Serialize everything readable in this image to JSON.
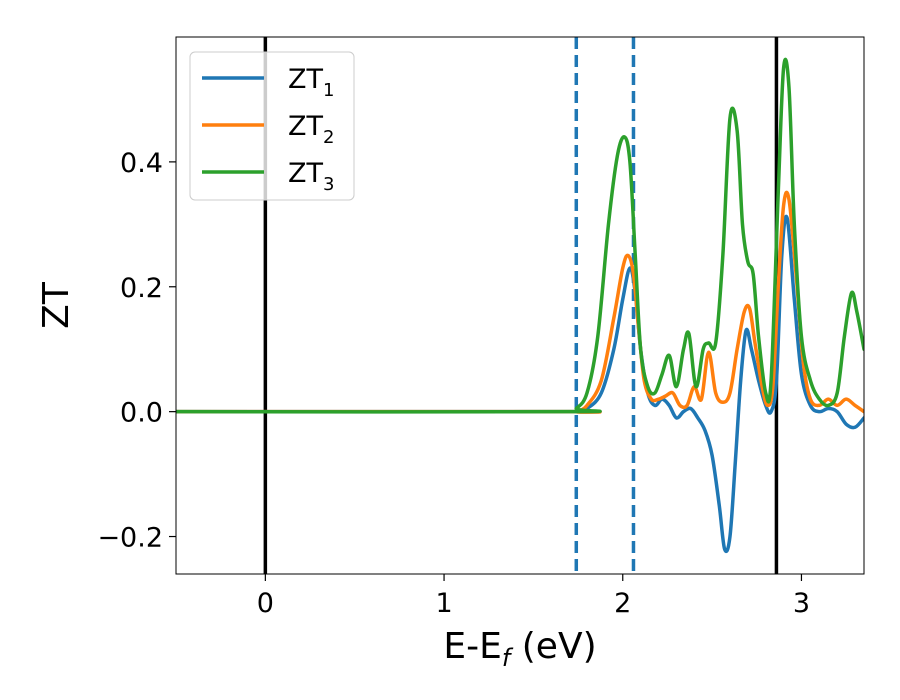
{
  "chart_data": {
    "type": "line",
    "xlabel_main": "E-E",
    "xlabel_sub": "f",
    "xlabel_unit": " (eV)",
    "ylabel": "ZT",
    "xlim": [
      -0.5,
      3.35
    ],
    "ylim": [
      -0.26,
      0.6
    ],
    "xticks": [
      0,
      1,
      2,
      3
    ],
    "xtick_labels": [
      "0",
      "1",
      "2",
      "3"
    ],
    "yticks": [
      -0.2,
      0.0,
      0.2,
      0.4
    ],
    "ytick_labels": [
      "−0.2",
      "0.0",
      "0.2",
      "0.4"
    ],
    "grid": false,
    "legend_position": "top-left",
    "vlines": [
      {
        "x": 0.0,
        "style": "solid",
        "color": "#000000"
      },
      {
        "x": 2.86,
        "style": "solid",
        "color": "#000000"
      },
      {
        "x": 1.74,
        "style": "dashed",
        "color": "#1f77b4"
      },
      {
        "x": 2.06,
        "style": "dashed",
        "color": "#1f77b4"
      }
    ],
    "series": [
      {
        "name": "ZT",
        "sub": "1",
        "color": "#1f77b4",
        "x": [
          -0.5,
          1.7,
          1.74,
          1.8,
          1.88,
          1.95,
          2.0,
          2.04,
          2.07,
          2.1,
          2.14,
          2.18,
          2.22,
          2.26,
          2.3,
          2.34,
          2.38,
          2.42,
          2.46,
          2.5,
          2.54,
          2.57,
          2.6,
          2.63,
          2.66,
          2.69,
          2.72,
          2.76,
          2.8,
          2.83,
          2.86,
          2.89,
          2.92,
          2.96,
          3.0,
          3.05,
          3.1,
          3.15,
          3.2,
          3.25,
          3.3,
          3.35
        ],
        "y": [
          0.0,
          0.0,
          0.0,
          0.005,
          0.03,
          0.1,
          0.18,
          0.23,
          0.19,
          0.1,
          0.03,
          0.01,
          0.02,
          0.01,
          -0.01,
          0.0,
          0.005,
          -0.01,
          -0.03,
          -0.07,
          -0.15,
          -0.22,
          -0.2,
          -0.08,
          0.05,
          0.13,
          0.1,
          0.05,
          0.01,
          0.0,
          0.05,
          0.25,
          0.31,
          0.18,
          0.06,
          0.01,
          0.0,
          0.005,
          0.0,
          -0.02,
          -0.025,
          -0.01
        ]
      },
      {
        "name": "ZT",
        "sub": "2",
        "color": "#ff7f0e",
        "x": [
          -0.5,
          1.7,
          1.74,
          1.8,
          1.88,
          1.95,
          2.0,
          2.03,
          2.06,
          2.09,
          2.12,
          2.16,
          2.2,
          2.24,
          2.28,
          2.32,
          2.36,
          2.4,
          2.44,
          2.48,
          2.52,
          2.56,
          2.6,
          2.64,
          2.68,
          2.71,
          2.74,
          2.78,
          2.81,
          2.84,
          2.87,
          2.9,
          2.93,
          2.97,
          3.01,
          3.05,
          3.1,
          3.15,
          3.2,
          3.25,
          3.3,
          3.35
        ],
        "y": [
          0.0,
          0.0,
          0.0,
          0.01,
          0.05,
          0.15,
          0.23,
          0.25,
          0.22,
          0.13,
          0.05,
          0.02,
          0.02,
          0.025,
          0.03,
          0.01,
          0.01,
          0.04,
          0.02,
          0.095,
          0.03,
          0.015,
          0.03,
          0.1,
          0.16,
          0.165,
          0.11,
          0.04,
          0.01,
          0.04,
          0.2,
          0.33,
          0.34,
          0.22,
          0.08,
          0.02,
          0.01,
          0.02,
          0.01,
          0.02,
          0.01,
          0.0
        ]
      },
      {
        "name": "ZT",
        "sub": "3",
        "color": "#2ca02c",
        "x": [
          -0.5,
          1.7,
          1.74,
          1.8,
          1.86,
          1.92,
          1.97,
          2.01,
          2.04,
          2.07,
          2.1,
          2.14,
          2.18,
          2.22,
          2.26,
          2.3,
          2.34,
          2.37,
          2.41,
          2.45,
          2.48,
          2.52,
          2.56,
          2.6,
          2.64,
          2.67,
          2.7,
          2.73,
          2.76,
          2.8,
          2.83,
          2.87,
          2.9,
          2.93,
          2.96,
          3.0,
          3.05,
          3.1,
          3.15,
          3.2,
          3.24,
          3.28,
          3.31,
          3.35
        ],
        "y": [
          0.0,
          0.0,
          0.005,
          0.03,
          0.12,
          0.3,
          0.41,
          0.44,
          0.4,
          0.25,
          0.1,
          0.04,
          0.03,
          0.06,
          0.09,
          0.04,
          0.1,
          0.125,
          0.04,
          0.1,
          0.11,
          0.11,
          0.25,
          0.47,
          0.45,
          0.3,
          0.24,
          0.22,
          0.12,
          0.03,
          0.05,
          0.35,
          0.55,
          0.52,
          0.3,
          0.12,
          0.05,
          0.02,
          0.01,
          0.03,
          0.12,
          0.19,
          0.16,
          0.1
        ]
      }
    ]
  }
}
